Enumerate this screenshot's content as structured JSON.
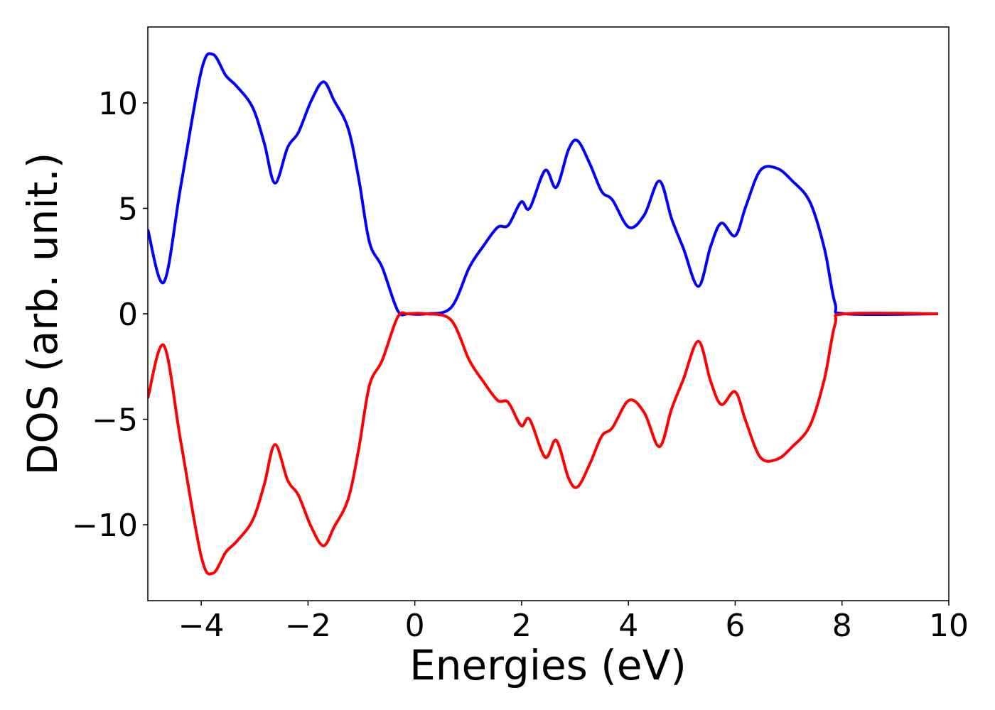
{
  "chart_data": {
    "type": "line",
    "xlabel": "Energies (eV)",
    "ylabel": "DOS (arb. unit.)",
    "x": [
      -5,
      -4.7,
      -4.38,
      -4.0,
      -3.78,
      -3.54,
      -3.34,
      -3.04,
      -2.82,
      -2.62,
      -2.38,
      -2.18,
      -1.94,
      -1.71,
      -1.51,
      -1.25,
      -1.05,
      -0.85,
      -0.61,
      -0.32,
      -0.12,
      0.22,
      0.68,
      1.02,
      1.28,
      1.55,
      1.75,
      1.99,
      2.15,
      2.44,
      2.65,
      2.88,
      3.05,
      3.28,
      3.5,
      3.7,
      4.01,
      4.3,
      4.58,
      4.81,
      5.03,
      5.31,
      5.54,
      5.74,
      6.0,
      6.2,
      6.47,
      6.78,
      7.07,
      7.4,
      7.67,
      7.87,
      8.07,
      9.8
    ],
    "series": [
      {
        "color": "#0000ff",
        "values": [
          4.0,
          1.5,
          6.1,
          11.5,
          12.3,
          11.3,
          10.8,
          9.8,
          8.1,
          6.2,
          7.9,
          8.6,
          10.1,
          11.0,
          10.1,
          8.8,
          6.4,
          3.4,
          2.2,
          0.15,
          0,
          0,
          0.3,
          2.2,
          3.2,
          4.1,
          4.2,
          5.3,
          5.0,
          6.8,
          6.0,
          7.8,
          8.2,
          7.1,
          5.8,
          5.4,
          4.1,
          4.7,
          6.3,
          4.5,
          3.1,
          1.3,
          3.2,
          4.3,
          3.7,
          5.1,
          6.8,
          6.9,
          6.3,
          5.3,
          3.1,
          0.5,
          0,
          0
        ]
      },
      {
        "color": "#ff0000",
        "values": [
          -4.0,
          -1.5,
          -6.1,
          -11.5,
          -12.3,
          -11.3,
          -10.8,
          -9.8,
          -8.1,
          -6.2,
          -7.9,
          -8.6,
          -10.1,
          -11.0,
          -10.1,
          -8.8,
          -6.4,
          -3.4,
          -2.2,
          -0.15,
          0,
          0,
          -0.3,
          -2.2,
          -3.2,
          -4.1,
          -4.2,
          -5.3,
          -5.0,
          -6.8,
          -6.0,
          -7.8,
          -8.2,
          -7.1,
          -5.8,
          -5.4,
          -4.1,
          -4.7,
          -6.3,
          -4.5,
          -3.1,
          -1.3,
          -3.2,
          -4.3,
          -3.7,
          -5.1,
          -6.8,
          -6.9,
          -6.3,
          -5.3,
          -3.1,
          -0.5,
          0,
          0
        ]
      }
    ],
    "xlim": [
      -5,
      10
    ],
    "ylim": [
      -13.6,
      13.6
    ],
    "xticks": [
      {
        "value": -4,
        "label": "−4"
      },
      {
        "value": -2,
        "label": "−2"
      },
      0,
      2,
      4,
      6,
      8,
      10
    ],
    "yticks": [
      {
        "value": -10,
        "label": "−10"
      },
      {
        "value": -5,
        "label": "−5"
      },
      0,
      5,
      10
    ],
    "grid": false
  }
}
